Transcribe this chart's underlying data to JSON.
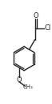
{
  "bg_color": "#ffffff",
  "line_color": "#222222",
  "line_width": 1.0,
  "text_color": "#222222",
  "font_size": 5.5,
  "figsize": [
    0.65,
    1.28
  ],
  "dpi": 100,
  "xlim": [
    -1.5,
    8.5
  ],
  "ylim": [
    -2.5,
    16.0
  ]
}
